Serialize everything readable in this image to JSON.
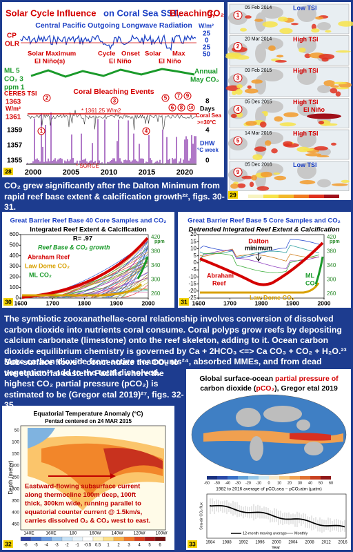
{
  "paragraphs": [
    "CO₂ grew significantly after the Dalton Minimum from rapid reef base extent & calcification growth²², figs. 30-31.",
    "The symbiotic zooxanathellae-coral relationship involves conversion of dissolved carbon dioxide into nutrients coral consume.  Coral polyps grow reefs by depositing calcium carbonate (limestone) onto the reef skeleton, adding to it.  Ocean carbon dioxide equilibrium chemistry is governed by Ca + 2HCO₃ <=> Ca CO₃ + CO₂ + H₂O.²³  More carbon dioxide from active seamounts²⁴, absorbed MMEs, and from dead vegetation²⁵ add to the total dissolved.",
    "Sub-surface flows²⁶ concentrate the CO₂ to the equatorial eastern Pacific where the highest CO₂ partial pressure (pCO₂) is estimated to be (Gregor etal 2019)²⁷, figs. 32-35."
  ],
  "panel28": {
    "number": "28",
    "labels": [
      "Solar Cycle Influence",
      "on Coral Sea SST,",
      "Bleaching,",
      "CO₂",
      "Central Pacific Outgoing Longwave Radiation",
      "CP",
      "OLR",
      "W/m²",
      "25",
      "0",
      "25",
      "50",
      "Solar Maximum",
      "El Niño(s)",
      "Cycle",
      "Onset",
      "El Niño",
      "Solar",
      "Max",
      "El Niño",
      "ML 5",
      "CO₂ 3",
      "ppm 1",
      "Annual",
      "May CO₂",
      "CERES TSI",
      "1363",
      "W/m²",
      "1361",
      "1359",
      "1357",
      "1355",
      "Coral Bleaching Events",
      "* 1361.25 W/m2",
      "8",
      "Days",
      "Coral Sea",
      ">=30°C",
      "4",
      "DHW",
      "°C week",
      "0",
      "* SORCE",
      "2000",
      "2005",
      "2010",
      "2015",
      "2020"
    ],
    "events": [
      "1",
      "2",
      "3",
      "4",
      "5",
      "6",
      "7",
      "8",
      "9",
      "10"
    ]
  },
  "panel29": {
    "number": "29",
    "maps": [
      {
        "date": "05 Feb 2014",
        "tsi": "Low TSI",
        "number": "1"
      },
      {
        "date": "20 Mar 2014",
        "tsi": "High TSI",
        "number": "2"
      },
      {
        "date": "09 Feb 2015",
        "tsi": "High TSI",
        "number": "3"
      },
      {
        "date": "05 Dec 2015",
        "tsi": "High TSI",
        "extra": "El Niño",
        "number": "4"
      },
      {
        "date": "14 Mar 2016",
        "tsi": "High TSI",
        "number": "5"
      },
      {
        "date": "05 Dec 2016",
        "tsi": "Low TSI",
        "number": "9"
      }
    ]
  },
  "panel30": {
    "number": "30",
    "labels": [
      "Great Barrier Reef Base 40 Core Samples and CO₂",
      "Integrated Reef Extent & Calcification",
      "R= .97",
      "Reef Base & CO₂ growth",
      "Abraham Reef",
      "Law Dome CO₂",
      "ML CO₂",
      "ppm"
    ],
    "yticks": [
      600,
      500,
      400,
      300,
      200,
      100,
      0
    ],
    "y2ticks": [
      420,
      380,
      340,
      300,
      260
    ],
    "xticks": [
      1600,
      1700,
      1800,
      1900,
      2000
    ]
  },
  "panel31": {
    "number": "31",
    "labels": [
      "Great Barrier Reef Base 5 Core Samples and CO₂",
      "Detrended Integrated Reef Extent & Calcification",
      "Dalton",
      "minimum",
      "Abraham",
      "Reef",
      "Law Dome CO₂",
      "ML",
      "CO₂",
      "ppm"
    ],
    "yticks": [
      20,
      15,
      10,
      5,
      0,
      -5,
      -10,
      -15,
      -20,
      -25
    ],
    "y2ticks": [
      420,
      380,
      340,
      300,
      260
    ],
    "xticks": [
      1600,
      1700,
      1800,
      1900,
      2000
    ]
  },
  "panel32": {
    "number": "32",
    "title": "Equatorial Temperature Anomaly (°C)",
    "subtitle": "Pentad centered on 24 MAR 2015",
    "ylabel": "Depth (meter)",
    "depths": [
      50,
      100,
      150,
      200,
      250,
      300,
      350,
      400,
      450
    ],
    "lons": [
      "140E",
      "160E",
      "180",
      "160W",
      "140W",
      "120W",
      "100W"
    ],
    "body": [
      "Eastward-flowing subsurface current",
      "along thermocline 100m deep, 100ft",
      "thick, 300km wide, running parallel to",
      "equatorial counter current @ 1.5km/s,",
      "carries dissolved O₂ & CO₂ west to east."
    ],
    "scale": [
      -6,
      -5,
      -4,
      -3,
      -2,
      -1,
      -0.5,
      0.5,
      1,
      2,
      3,
      4,
      5,
      6
    ]
  },
  "panel33": {
    "number": "33",
    "title": [
      "Global surface-ocean ",
      "partial pressure of",
      "carbon dioxide (",
      "pCO₂",
      "), Gregor etal 2019"
    ],
    "scale": [
      -60,
      -50,
      -40,
      -30,
      -20,
      -10,
      0,
      10,
      20,
      30,
      40,
      50,
      60
    ],
    "caption": "1982 to 2016 average of pCO₂sea − pCO₂atm (µatm)",
    "ylabel": "Sea-air CO₂ flux",
    "years": [
      1984,
      1988,
      1992,
      1996,
      2000,
      2004,
      2008,
      2012,
      2016
    ],
    "legend": [
      "12-month moving average",
      "Monthly"
    ],
    "xlabel": "Year"
  }
}
